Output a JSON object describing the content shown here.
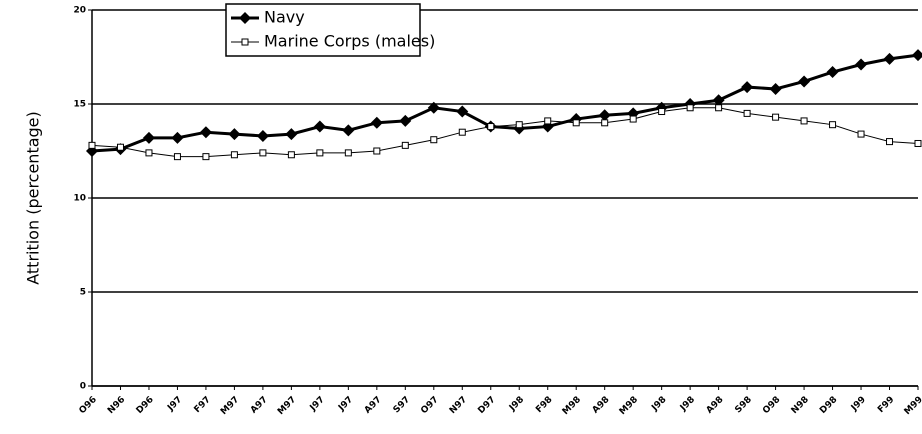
{
  "chart_data": {
    "type": "line",
    "y_label": "Attrition (percentage)",
    "categories": [
      "O96",
      "N96",
      "D96",
      "J97",
      "F97",
      "M97",
      "A97",
      "M97",
      "J97",
      "J97",
      "A97",
      "S97",
      "O97",
      "N97",
      "D97",
      "J98",
      "F98",
      "M98",
      "A98",
      "M98",
      "J98",
      "J98",
      "A98",
      "S98",
      "O98",
      "N98",
      "D98",
      "J99",
      "F99",
      "M99"
    ],
    "series": [
      {
        "name": "Navy",
        "color": "#000000",
        "marker": "diamond",
        "values": [
          12.5,
          12.6,
          13.2,
          13.2,
          13.5,
          13.4,
          13.3,
          13.4,
          13.8,
          13.6,
          14.0,
          14.1,
          14.8,
          14.6,
          13.8,
          13.7,
          13.8,
          14.2,
          14.4,
          14.5,
          14.8,
          15.0,
          15.2,
          15.9,
          15.8,
          16.2,
          16.7,
          17.1,
          17.4,
          17.6
        ]
      },
      {
        "name": "Marine Corps (males)",
        "color": "#000000",
        "marker": "square",
        "values": [
          12.8,
          12.7,
          12.4,
          12.2,
          12.2,
          12.3,
          12.4,
          12.3,
          12.4,
          12.4,
          12.5,
          12.8,
          13.1,
          13.5,
          13.8,
          13.9,
          14.1,
          14.0,
          14.0,
          14.2,
          14.6,
          14.8,
          14.8,
          14.5,
          14.3,
          14.1,
          13.9,
          13.4,
          13.0,
          12.9
        ]
      }
    ],
    "ylim": [
      0,
      20
    ],
    "yticks": [
      0,
      5,
      10,
      15,
      20
    ],
    "grid": true,
    "legend": "top"
  }
}
